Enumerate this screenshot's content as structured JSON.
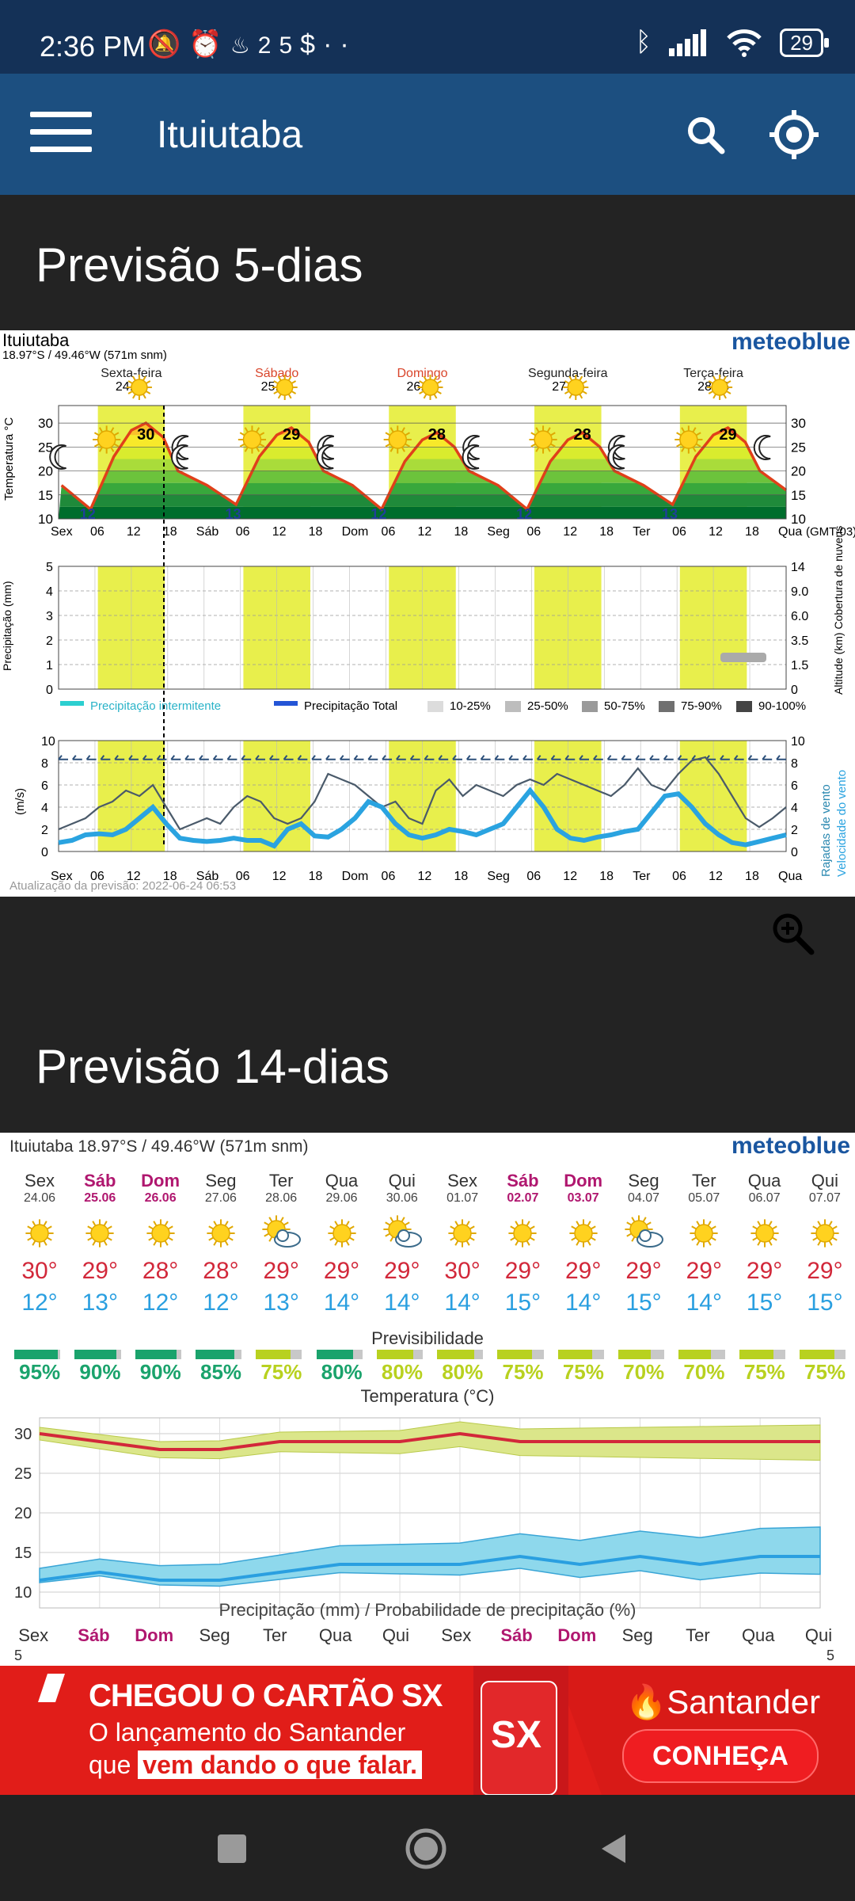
{
  "status_bar": {
    "time": "2:36 PM",
    "temp_icon_value": "25",
    "battery": "29"
  },
  "app_bar": {
    "title": "Ituiutaba"
  },
  "section5": {
    "title": "Previsão 5-dias"
  },
  "meteogram5": {
    "location": "Ituiutaba",
    "coords": "18.97°S / 49.46°W (571m snm)",
    "brand": "meteoblue",
    "days": [
      {
        "name": "Sexta-feira",
        "date": "24.06",
        "color": "#222"
      },
      {
        "name": "Sábado",
        "date": "25.06",
        "color": "#d9452b"
      },
      {
        "name": "Domingo",
        "date": "26.06",
        "color": "#d9452b"
      },
      {
        "name": "Segunda-feira",
        "date": "27.06",
        "color": "#222"
      },
      {
        "name": "Terça-feira",
        "date": "28.06",
        "color": "#222"
      }
    ],
    "temp_axis_label": "Temperatura °C",
    "temp_ticks": [
      "30",
      "25",
      "20",
      "15",
      "10"
    ],
    "max_labels": [
      "30",
      "29",
      "28",
      "28",
      "29"
    ],
    "min_labels": [
      "12",
      "13",
      "12",
      "12",
      "13"
    ],
    "time_axis": [
      "Sex",
      "06",
      "12",
      "18",
      "Sáb",
      "06",
      "12",
      "18",
      "Dom",
      "06",
      "12",
      "18",
      "Seg",
      "06",
      "12",
      "18",
      "Ter",
      "06",
      "12",
      "18",
      "Qua"
    ],
    "gmt": "(GMT-03)",
    "precip_axis_label": "Precipitação (mm)",
    "precip_ticks": [
      "5",
      "4",
      "3",
      "2",
      "1",
      "0"
    ],
    "cloud_ticks": [
      "14",
      "9.0",
      "6.0",
      "3.5",
      "1.5",
      "0"
    ],
    "cloud_axis_label": "Altitude (km) Cobertura de nuvens",
    "legend": [
      "Precipitação intermitente",
      "Precipitação Total",
      "10-25%",
      "25-50%",
      "50-75%",
      "75-90%",
      "90-100%"
    ],
    "wind_axis_label": "(m/s)",
    "wind_ticks": [
      "10",
      "8",
      "6",
      "4",
      "2",
      "0"
    ],
    "wind_right_label1": "Rajadas de vento",
    "wind_right_label2": "Velocidade do vento",
    "update": "Atualização da previsão: 2022-06-24 06:53"
  },
  "section14": {
    "title": "Previsão 14-dias"
  },
  "forecast14": {
    "header": "Ituiutaba  18.97°S / 49.46°W (571m snm)",
    "brand": "meteoblue",
    "days": [
      {
        "name": "Sex",
        "date": "24.06",
        "weekend": false,
        "icon": "sun",
        "max": "30°",
        "min": "12°",
        "pct": "95%",
        "p": 0.95,
        "color": "#1aa36c"
      },
      {
        "name": "Sáb",
        "date": "25.06",
        "weekend": true,
        "icon": "sun",
        "max": "29°",
        "min": "13°",
        "pct": "90%",
        "p": 0.9,
        "color": "#1aa36c"
      },
      {
        "name": "Dom",
        "date": "26.06",
        "weekend": true,
        "icon": "sun",
        "max": "28°",
        "min": "12°",
        "pct": "90%",
        "p": 0.9,
        "color": "#1aa36c"
      },
      {
        "name": "Seg",
        "date": "27.06",
        "weekend": false,
        "icon": "sun",
        "max": "28°",
        "min": "12°",
        "pct": "85%",
        "p": 0.85,
        "color": "#1aa36c"
      },
      {
        "name": "Ter",
        "date": "28.06",
        "weekend": false,
        "icon": "sun-cloud",
        "max": "29°",
        "min": "13°",
        "pct": "75%",
        "p": 0.75,
        "color": "#b8d11f"
      },
      {
        "name": "Qua",
        "date": "29.06",
        "weekend": false,
        "icon": "sun",
        "max": "29°",
        "min": "14°",
        "pct": "80%",
        "p": 0.8,
        "color": "#1aa36c"
      },
      {
        "name": "Qui",
        "date": "30.06",
        "weekend": false,
        "icon": "sun-cloud",
        "max": "29°",
        "min": "14°",
        "pct": "80%",
        "p": 0.8,
        "color": "#b8d11f"
      },
      {
        "name": "Sex",
        "date": "01.07",
        "weekend": false,
        "icon": "sun",
        "max": "30°",
        "min": "14°",
        "pct": "80%",
        "p": 0.8,
        "color": "#b8d11f"
      },
      {
        "name": "Sáb",
        "date": "02.07",
        "weekend": true,
        "icon": "sun",
        "max": "29°",
        "min": "15°",
        "pct": "75%",
        "p": 0.75,
        "color": "#b8d11f"
      },
      {
        "name": "Dom",
        "date": "03.07",
        "weekend": true,
        "icon": "sun",
        "max": "29°",
        "min": "14°",
        "pct": "75%",
        "p": 0.75,
        "color": "#b8d11f"
      },
      {
        "name": "Seg",
        "date": "04.07",
        "weekend": false,
        "icon": "sun-cloud",
        "max": "29°",
        "min": "15°",
        "pct": "70%",
        "p": 0.7,
        "color": "#b8d11f"
      },
      {
        "name": "Ter",
        "date": "05.07",
        "weekend": false,
        "icon": "sun",
        "max": "29°",
        "min": "14°",
        "pct": "70%",
        "p": 0.7,
        "color": "#b8d11f"
      },
      {
        "name": "Qua",
        "date": "06.07",
        "weekend": false,
        "icon": "sun",
        "max": "29°",
        "min": "15°",
        "pct": "75%",
        "p": 0.75,
        "color": "#b8d11f"
      },
      {
        "name": "Qui",
        "date": "07.07",
        "weekend": false,
        "icon": "sun",
        "max": "29°",
        "min": "15°",
        "pct": "75%",
        "p": 0.75,
        "color": "#b8d11f"
      }
    ],
    "predict_label": "Previsibilidade",
    "temp_chart_title": "Temperatura (°C)",
    "temp_ticks": [
      "30",
      "25",
      "20",
      "15",
      "10"
    ],
    "precip_title": "Precipitação (mm) / Probabilidade de precipitação (%)",
    "precip_tick": "5"
  },
  "ad": {
    "line1": "CHEGOU O CARTÃO SX",
    "line2": "O lançamento do Santander",
    "line3a": "que ",
    "line3b": "vem dando o que falar.",
    "card": "SX",
    "brand": "Santander",
    "cta": "CONHEÇA"
  }
}
